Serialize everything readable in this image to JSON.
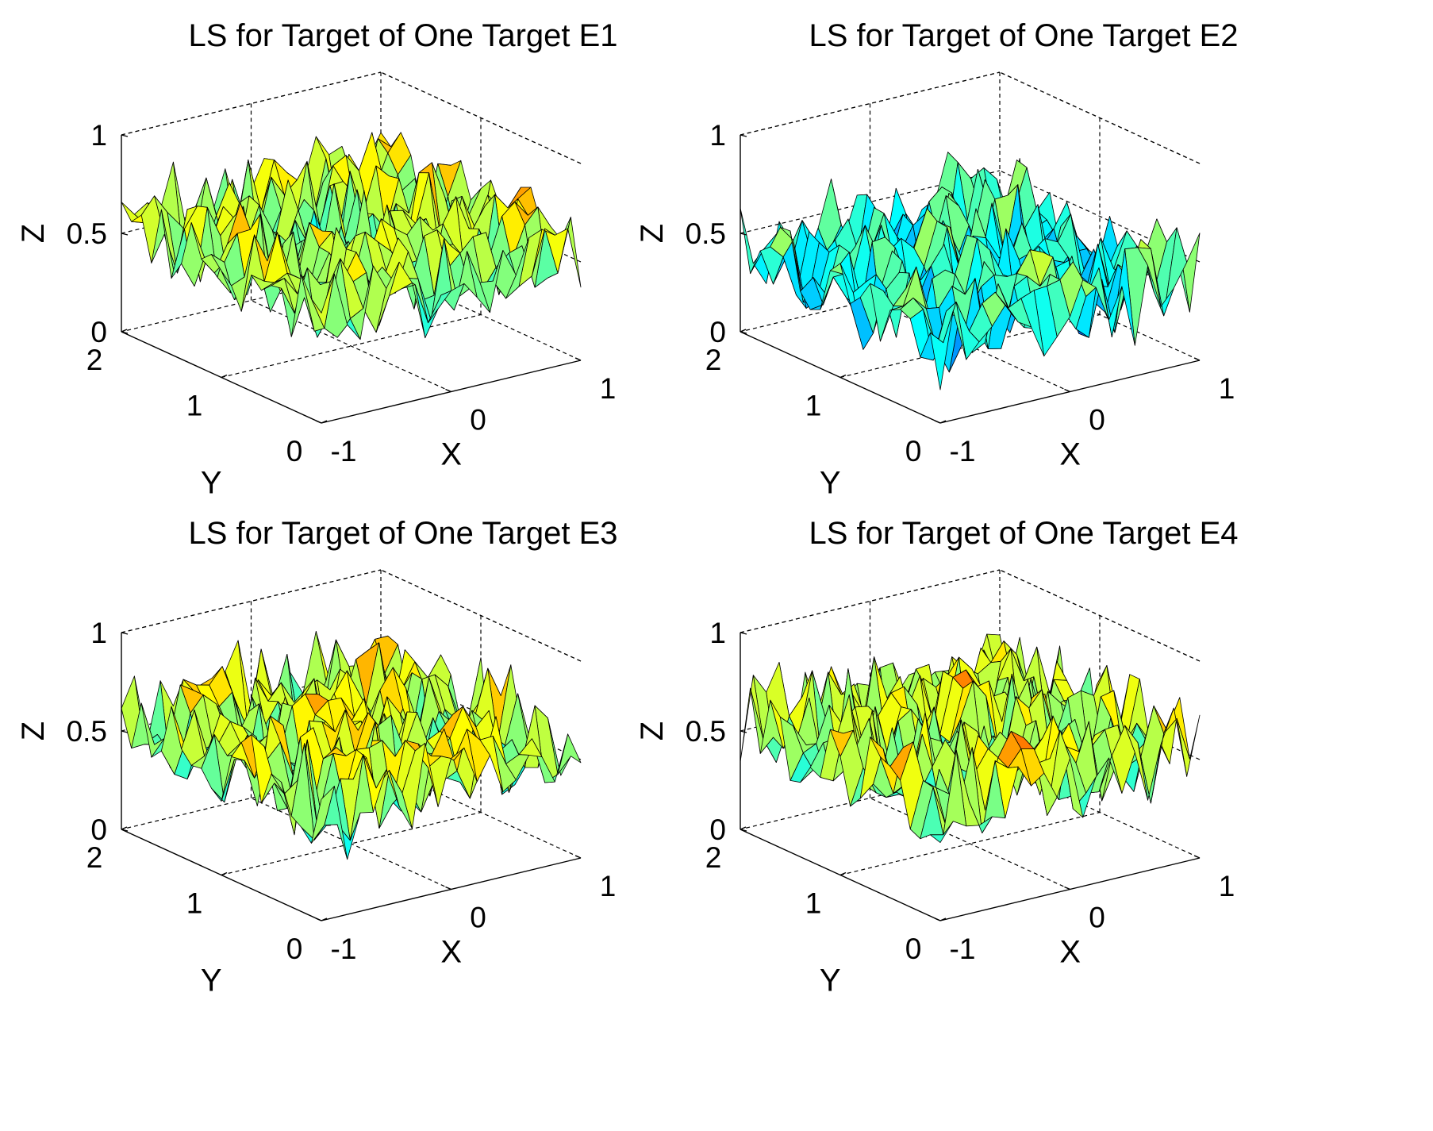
{
  "chart_data": [
    {
      "type": "surface",
      "title": "LS for Target of One Target E1",
      "xlabel": "X",
      "ylabel": "Y",
      "zlabel": "Z",
      "xlim": [
        -1,
        1
      ],
      "ylim": [
        0,
        2
      ],
      "zlim": [
        0,
        1
      ],
      "xticks": [
        "-1",
        "0",
        "1"
      ],
      "yticks": [
        "0",
        "1",
        "2"
      ],
      "zticks": [
        "0",
        "0.5",
        "1"
      ],
      "grid": true,
      "colormap": "jet",
      "grid_size": [
        21,
        21
      ],
      "z_mean": 0.55,
      "z_spread": 0.22,
      "seed": 11
    },
    {
      "type": "surface",
      "title": "LS for Target of One Target E2",
      "xlabel": "X",
      "ylabel": "Y",
      "zlabel": "Z",
      "xlim": [
        -1,
        1
      ],
      "ylim": [
        0,
        2
      ],
      "zlim": [
        0,
        1
      ],
      "xticks": [
        "-1",
        "0",
        "1"
      ],
      "yticks": [
        "0",
        "1",
        "2"
      ],
      "zticks": [
        "0",
        "0.5",
        "1"
      ],
      "grid": true,
      "colormap": "jet",
      "grid_size": [
        21,
        21
      ],
      "z_mean": 0.4,
      "z_spread": 0.22,
      "seed": 23
    },
    {
      "type": "surface",
      "title": "LS for Target of One Target E3",
      "xlabel": "X",
      "ylabel": "Y",
      "zlabel": "Z",
      "xlim": [
        -1,
        1
      ],
      "ylim": [
        0,
        2
      ],
      "zlim": [
        0,
        1
      ],
      "xticks": [
        "-1",
        "0",
        "1"
      ],
      "yticks": [
        "0",
        "1",
        "2"
      ],
      "zticks": [
        "0",
        "0.5",
        "1"
      ],
      "grid": true,
      "colormap": "jet",
      "grid_size": [
        21,
        21
      ],
      "z_mean": 0.55,
      "z_spread": 0.22,
      "seed": 37
    },
    {
      "type": "surface",
      "title": "LS for Target of One Target E4",
      "xlabel": "X",
      "ylabel": "Y",
      "zlabel": "Z",
      "xlim": [
        -1,
        1
      ],
      "ylim": [
        0,
        2
      ],
      "zlim": [
        0,
        1
      ],
      "xticks": [
        "-1",
        "0",
        "1"
      ],
      "yticks": [
        "0",
        "1",
        "2"
      ],
      "zticks": [
        "0",
        "0.5",
        "1"
      ],
      "grid": true,
      "colormap": "jet",
      "grid_size": [
        21,
        21
      ],
      "z_mean": 0.55,
      "z_spread": 0.22,
      "seed": 53
    }
  ]
}
